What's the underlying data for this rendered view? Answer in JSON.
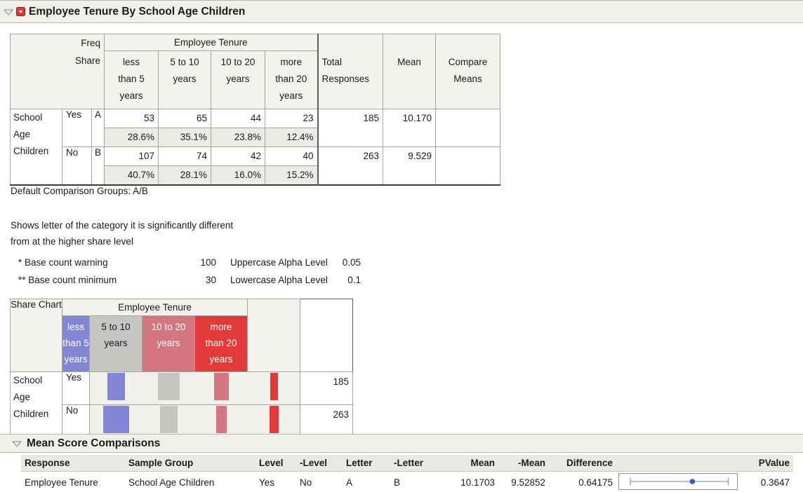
{
  "report": {
    "title": "Employee Tenure By School Age Children"
  },
  "freq_table": {
    "corner": [
      "Freq",
      "Share"
    ],
    "group_header": "Employee Tenure",
    "tenure_columns": [
      {
        "lines": [
          "less",
          "than 5",
          "years"
        ]
      },
      {
        "lines": [
          "5 to 10",
          "years"
        ]
      },
      {
        "lines": [
          "10 to 20",
          "years"
        ]
      },
      {
        "lines": [
          "more",
          "than 20",
          "years"
        ]
      }
    ],
    "total_header": [
      "Total",
      "Responses"
    ],
    "mean_header": "Mean",
    "compare_header": [
      "Compare",
      "Means"
    ],
    "row_group_label": [
      "School",
      "Age",
      "Children"
    ],
    "rows": [
      {
        "level": "Yes",
        "letter": "A",
        "counts": [
          "53",
          "65",
          "44",
          "23"
        ],
        "shares": [
          "28.6%",
          "35.1%",
          "23.8%",
          "12.4%"
        ],
        "total": "185",
        "mean": "10.170"
      },
      {
        "level": "No",
        "letter": "B",
        "counts": [
          "107",
          "74",
          "42",
          "40"
        ],
        "shares": [
          "40.7%",
          "28.1%",
          "16.0%",
          "15.2%"
        ],
        "total": "263",
        "mean": "9.529"
      }
    ]
  },
  "notes": {
    "default_groups": "Default Comparison Groups: A/B",
    "explain_line1": "Shows letter of the category it is significantly different",
    "explain_line2": "from at the higher share level",
    "base_warning_label": "* Base count warning",
    "base_warning_value": "100",
    "upper_alpha_label": "Uppercase Alpha Level",
    "upper_alpha_value": "0.05",
    "base_minimum_label": "** Base count minimum",
    "base_minimum_value": "30",
    "lower_alpha_label": "Lowercase Alpha Level",
    "lower_alpha_value": "0.1"
  },
  "share_chart": {
    "label": "Share Chart",
    "group_header": "Employee Tenure",
    "row_group_label": [
      "School",
      "Age",
      "Children"
    ],
    "categories": [
      {
        "lines": [
          "less",
          "than 5",
          "years"
        ],
        "color": "#8186d5",
        "text_color": "#ffffff"
      },
      {
        "lines": [
          "5 to 10",
          "years"
        ],
        "color": "#c6c5c2",
        "text_color": "#1b1b1b"
      },
      {
        "lines": [
          "10 to 20",
          "years"
        ],
        "color": "#d4767f",
        "text_color": "#ffffff"
      },
      {
        "lines": [
          "more",
          "than 20",
          "years"
        ],
        "color": "#e23a3b",
        "text_color": "#ffffff"
      }
    ],
    "rows": [
      {
        "level": "Yes",
        "shares": [
          28.6,
          35.1,
          23.8,
          12.4
        ],
        "total": "185"
      },
      {
        "level": "No",
        "shares": [
          40.7,
          28.1,
          16.0,
          15.2
        ],
        "total": "263"
      }
    ]
  },
  "mean_score": {
    "section_title": "Mean Score Comparisons",
    "columns": [
      "Response",
      "Sample Group",
      "Level",
      "-Level",
      "Letter",
      "-Letter",
      "Mean",
      "-Mean",
      "Difference",
      "",
      "PValue"
    ],
    "row": {
      "response": "Employee Tenure",
      "sample_group": "School Age Children",
      "level": "Yes",
      "minus_level": "No",
      "letter": "A",
      "minus_letter": "B",
      "mean": "10.1703",
      "minus_mean": "9.52852",
      "difference": "0.64175",
      "pvalue": "0.3647"
    },
    "ci_plot": {
      "lo": 0.1,
      "hi": 0.92,
      "dot": 0.62,
      "line_color": "#8b9dc3",
      "dot_color": "#2a5fc4"
    }
  },
  "chart_data": {
    "type": "bar",
    "title": "Share Chart",
    "categories": [
      "less than 5 years",
      "5 to 10 years",
      "10 to 20 years",
      "more than 20 years"
    ],
    "series": [
      {
        "name": "Yes",
        "values": [
          28.6,
          35.1,
          23.8,
          12.4
        ]
      },
      {
        "name": "No",
        "values": [
          40.7,
          28.1,
          16.0,
          15.2
        ]
      }
    ],
    "unit": "percent share of total responses",
    "totals": {
      "Yes": 185,
      "No": 263
    }
  }
}
